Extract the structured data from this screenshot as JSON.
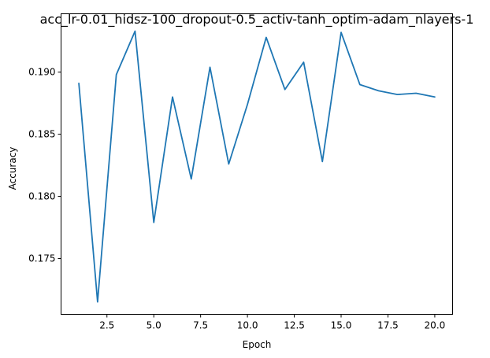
{
  "chart_data": {
    "type": "line",
    "title": "acc_lr-0.01_hidsz-100_dropout-0.5_activ-tanh_optim-adam_nlayers-1",
    "xlabel": "Epoch",
    "ylabel": "Accuracy",
    "xlim": [
      0.05,
      20.95
    ],
    "ylim": [
      0.1705,
      0.1947
    ],
    "xticks": [
      2.5,
      5.0,
      7.5,
      10.0,
      12.5,
      15.0,
      17.5,
      20.0
    ],
    "xtick_labels": [
      "2.5",
      "5.0",
      "7.5",
      "10.0",
      "12.5",
      "15.0",
      "17.5",
      "20.0"
    ],
    "yticks": [
      0.175,
      0.18,
      0.185,
      0.19
    ],
    "ytick_labels": [
      "0.175",
      "0.180",
      "0.185",
      "0.190"
    ],
    "grid": false,
    "series": [
      {
        "color": "#1f77b4",
        "x": [
          1,
          2,
          3,
          4,
          5,
          6,
          7,
          8,
          9,
          10,
          11,
          12,
          13,
          14,
          15,
          16,
          17,
          18,
          19,
          20
        ],
        "values": [
          0.1891,
          0.1715,
          0.1898,
          0.1933,
          0.1779,
          0.188,
          0.1814,
          0.1904,
          0.1826,
          0.1874,
          0.1928,
          0.1886,
          0.1908,
          0.1828,
          0.1932,
          0.189,
          0.1885,
          0.1882,
          0.1883,
          0.188
        ]
      }
    ]
  }
}
